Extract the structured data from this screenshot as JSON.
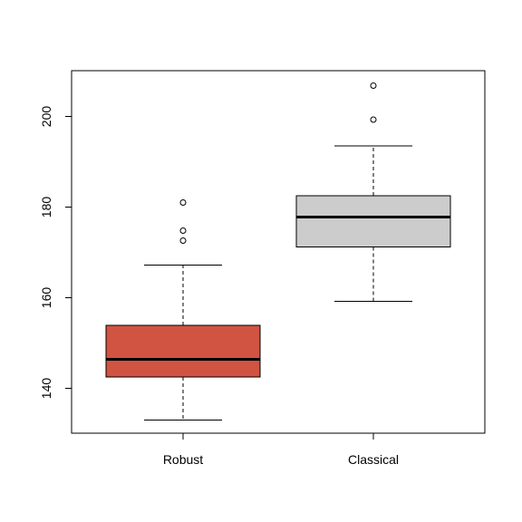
{
  "chart_data": {
    "type": "boxplot",
    "title": "",
    "xlabel": "",
    "ylabel": "",
    "categories": [
      "Robust",
      "Classical"
    ],
    "ylim": [
      130,
      210
    ],
    "yticks": [
      140,
      160,
      180,
      200
    ],
    "grid": false,
    "legend": "none",
    "series": [
      {
        "category": "Robust",
        "color": "#D05441",
        "whisker_low": 133,
        "q1": 142.5,
        "median": 146.4,
        "q3": 153.9,
        "whisker_high": 167.2,
        "outliers": [
          172.6,
          174.8,
          181.0
        ]
      },
      {
        "category": "Classical",
        "color": "#CCCCCC",
        "whisker_low": 159.2,
        "q1": 171.2,
        "median": 177.8,
        "q3": 182.5,
        "whisker_high": 193.5,
        "outliers": [
          199.3,
          206.8
        ]
      }
    ]
  }
}
